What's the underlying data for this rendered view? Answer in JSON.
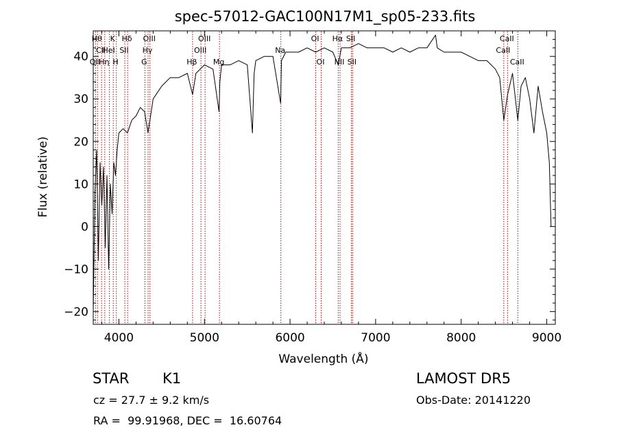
{
  "chart_data": {
    "type": "line",
    "title": "spec-57012-GAC100N17M1_sp05-233.fits",
    "xlabel": "Wavelength (Å)",
    "ylabel": "Flux (relative)",
    "xlim": [
      3700,
      9100
    ],
    "ylim": [
      -23,
      46
    ],
    "xticks": [
      4000,
      5000,
      6000,
      7000,
      8000,
      9000
    ],
    "yticks": [
      -20,
      -10,
      0,
      10,
      20,
      30,
      40
    ],
    "grid": false,
    "legend": "none",
    "line_color": "#000000",
    "marker_color": "#aa0000",
    "series": [
      {
        "x": [
          3700,
          3720,
          3740,
          3760,
          3780,
          3800,
          3820,
          3840,
          3860,
          3880,
          3900,
          3920,
          3940,
          3960,
          3980,
          4000,
          4050,
          4100,
          4150,
          4200,
          4250,
          4300,
          4340,
          4400,
          4500,
          4600,
          4700,
          4800,
          4861,
          4900,
          5000,
          5100,
          5170,
          5180,
          5200,
          5300,
          5400,
          5500,
          5560,
          5580,
          5600,
          5700,
          5800,
          5890,
          5900,
          5950,
          6000,
          6100,
          6200,
          6300,
          6400,
          6500,
          6563,
          6600,
          6700,
          6800,
          6900,
          7000,
          7100,
          7200,
          7300,
          7400,
          7500,
          7600,
          7700,
          7720,
          7800,
          7900,
          8000,
          8100,
          8200,
          8300,
          8400,
          8450,
          8498,
          8542,
          8600,
          8662,
          8700,
          8750,
          8800,
          8850,
          8900,
          8950,
          9000,
          9030,
          9050
        ],
        "y": [
          -20,
          8,
          18,
          -8,
          15,
          5,
          14,
          -5,
          12,
          -10,
          10,
          3,
          15,
          12,
          18,
          22,
          23,
          22,
          25,
          26,
          28,
          27,
          22,
          30,
          33,
          35,
          35,
          36,
          31,
          36,
          38,
          37,
          27,
          34,
          38,
          38,
          39,
          38,
          22,
          36,
          39,
          40,
          40,
          29,
          39,
          41,
          41,
          41,
          42,
          41,
          42,
          41,
          38,
          42,
          42,
          43,
          42,
          42,
          42,
          41,
          42,
          41,
          42,
          42,
          45,
          42,
          41,
          41,
          41,
          40,
          39,
          39,
          37,
          35,
          25,
          31,
          36,
          25,
          33,
          35,
          30,
          22,
          33,
          27,
          22,
          15,
          0
        ]
      }
    ],
    "lines": [
      {
        "label": "Hθ",
        "x": 3750,
        "row": 0
      },
      {
        "label": "CII",
        "x": 3797,
        "row": 1
      },
      {
        "label": "OII",
        "x": 3727,
        "row": 2
      },
      {
        "label": "Hη",
        "x": 3835,
        "row": 2
      },
      {
        "label": "K",
        "x": 3934,
        "row": 0
      },
      {
        "label": "HeI",
        "x": 3889,
        "row": 1
      },
      {
        "label": "H",
        "x": 3970,
        "row": 2
      },
      {
        "label": "Hδ",
        "x": 4102,
        "row": 0
      },
      {
        "label": "SII",
        "x": 4069,
        "row": 1
      },
      {
        "label": "OIII",
        "x": 4363,
        "row": 0
      },
      {
        "label": "Hγ",
        "x": 4341,
        "row": 1
      },
      {
        "label": "G",
        "x": 4304,
        "row": 2
      },
      {
        "label": "OIII",
        "x": 5007,
        "row": 0
      },
      {
        "label": "OIII",
        "x": 4959,
        "row": 1
      },
      {
        "label": "Hβ",
        "x": 4861,
        "row": 2
      },
      {
        "label": "Mg",
        "x": 5175,
        "row": 2
      },
      {
        "label": "Na",
        "x": 5893,
        "row": 1
      },
      {
        "label": "OI",
        "x": 6300,
        "row": 0
      },
      {
        "label": "OI",
        "x": 6364,
        "row": 2
      },
      {
        "label": "Hα",
        "x": 6563,
        "row": 0
      },
      {
        "label": "NII",
        "x": 6584,
        "row": 2
      },
      {
        "label": "SII",
        "x": 6717,
        "row": 0
      },
      {
        "label": "SII",
        "x": 6731,
        "row": 2
      },
      {
        "label": "CaII",
        "x": 8542,
        "row": 0
      },
      {
        "label": "CaII",
        "x": 8498,
        "row": 1
      },
      {
        "label": "CaII",
        "x": 8662,
        "row": 2
      }
    ]
  },
  "info": {
    "object_class": "STAR",
    "subclass": "K1",
    "cz": "cz = 27.7 ± 9.2 km/s",
    "coords": "RA =  99.91968, DEC =  16.60764",
    "survey": "LAMOST DR5",
    "obs_date": "Obs-Date: 20141220"
  }
}
